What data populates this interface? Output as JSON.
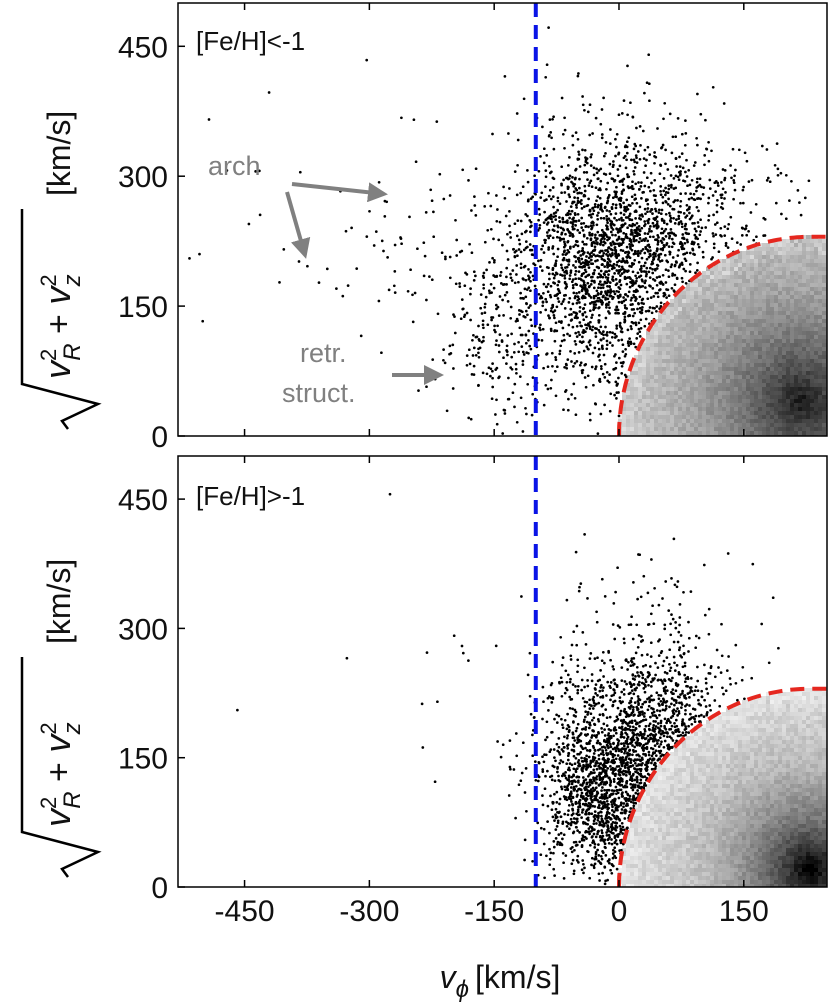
{
  "chart_data": {
    "type": "scatter",
    "figure_description_free": true,
    "x_axis": {
      "label_symbol": "v",
      "label_subscript": "ϕ",
      "label_units": "[km/s]",
      "lim": [
        -530,
        250
      ],
      "ticks": [
        -450,
        -300,
        -150,
        0,
        150
      ],
      "tick_labels": [
        "-450",
        "-300",
        "-150",
        "0",
        "150"
      ]
    },
    "y_axis": {
      "label_units": "[km/s]",
      "lim": [
        0,
        500
      ],
      "ticks": [
        0,
        150,
        300,
        450
      ],
      "tick_labels": [
        "0",
        "150",
        "300",
        "450"
      ]
    },
    "reference_lines": {
      "vertical_dashed_blue": {
        "x": -100,
        "color": "#0a14e6"
      },
      "red_dashed_circle": {
        "center_x": 230,
        "center_y": 0,
        "radius": 230,
        "color": "#e5271f"
      }
    },
    "panels": [
      {
        "id": "top",
        "label": "[Fe/H]<-1",
        "annotations": [
          {
            "text": "arch"
          },
          {
            "text_lines": [
              "retr.",
              "struct."
            ]
          }
        ],
        "clusters": [
          {
            "name": "main-clump",
            "cx": -15,
            "cy": 200,
            "sx": 60,
            "sy": 75,
            "n": 1900
          },
          {
            "name": "prograde-edge",
            "cx": 80,
            "cy": 240,
            "sx": 60,
            "sy": 60,
            "n": 350
          },
          {
            "name": "retrograde-structure",
            "cx": -150,
            "cy": 110,
            "sx": 35,
            "sy": 60,
            "n": 180
          },
          {
            "name": "arch",
            "cx": -270,
            "cy": 220,
            "sx": 70,
            "sy": 50,
            "n": 60
          },
          {
            "name": "outliers",
            "cx": -150,
            "cy": 250,
            "sx": 170,
            "sy": 110,
            "n": 45
          }
        ],
        "disk_density": {
          "peak_x": 220,
          "peak_y": 40,
          "scale": 70,
          "strength": 0.85
        }
      },
      {
        "id": "bottom",
        "label": "[Fe/H]>-1",
        "annotations": [],
        "clusters": [
          {
            "name": "edge-band",
            "cx": 30,
            "cy": 150,
            "sx": 55,
            "sy": 60,
            "n": 1300
          },
          {
            "name": "inner-band",
            "cx": -20,
            "cy": 95,
            "sx": 35,
            "sy": 45,
            "n": 700
          },
          {
            "name": "high-tail",
            "cx": 30,
            "cy": 270,
            "sx": 50,
            "sy": 60,
            "n": 170
          },
          {
            "name": "outliers",
            "cx": -100,
            "cy": 250,
            "sx": 150,
            "sy": 120,
            "n": 25
          }
        ],
        "disk_density": {
          "peak_x": 230,
          "peak_y": 20,
          "scale": 45,
          "strength": 1.0
        }
      }
    ]
  }
}
